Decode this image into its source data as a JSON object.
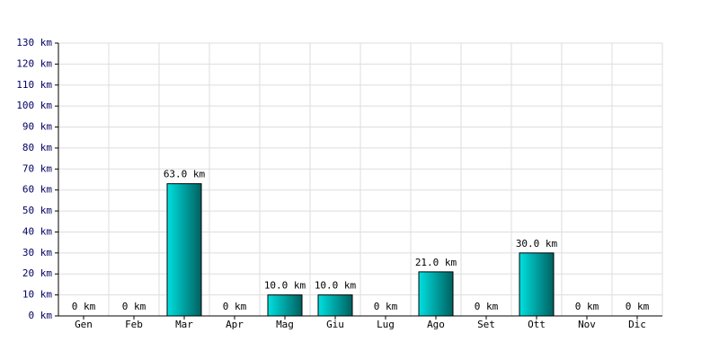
{
  "chart_data": {
    "type": "bar",
    "categories": [
      "Gen",
      "Feb",
      "Mar",
      "Apr",
      "Mag",
      "Giu",
      "Lug",
      "Ago",
      "Set",
      "Ott",
      "Nov",
      "Dic"
    ],
    "values": [
      0,
      0,
      63,
      0,
      10,
      10,
      0,
      21,
      0,
      30,
      0,
      0
    ],
    "value_labels": [
      "0 km",
      "0 km",
      "63.0 km",
      "0 km",
      "10.0 km",
      "10.0 km",
      "0 km",
      "21.0 km",
      "0 km",
      "30.0 km",
      "0 km",
      "0 km"
    ],
    "color": "#00e0e0",
    "ylim": [
      0,
      130
    ],
    "yticks": [
      {
        "value": 0,
        "label": "0 km"
      },
      {
        "value": 10,
        "label": "10 km"
      },
      {
        "value": 20,
        "label": "20 km"
      },
      {
        "value": 30,
        "label": "30 km"
      },
      {
        "value": 40,
        "label": "40 km"
      },
      {
        "value": 50,
        "label": "50 km"
      },
      {
        "value": 60,
        "label": "60 km"
      },
      {
        "value": 70,
        "label": "70 km"
      },
      {
        "value": 80,
        "label": "80 km"
      },
      {
        "value": 90,
        "label": "90 km"
      },
      {
        "value": 100,
        "label": "100 km"
      },
      {
        "value": 110,
        "label": "110 km"
      },
      {
        "value": 120,
        "label": "120 km"
      },
      {
        "value": 130,
        "label": "130 km"
      }
    ],
    "grid": true
  }
}
